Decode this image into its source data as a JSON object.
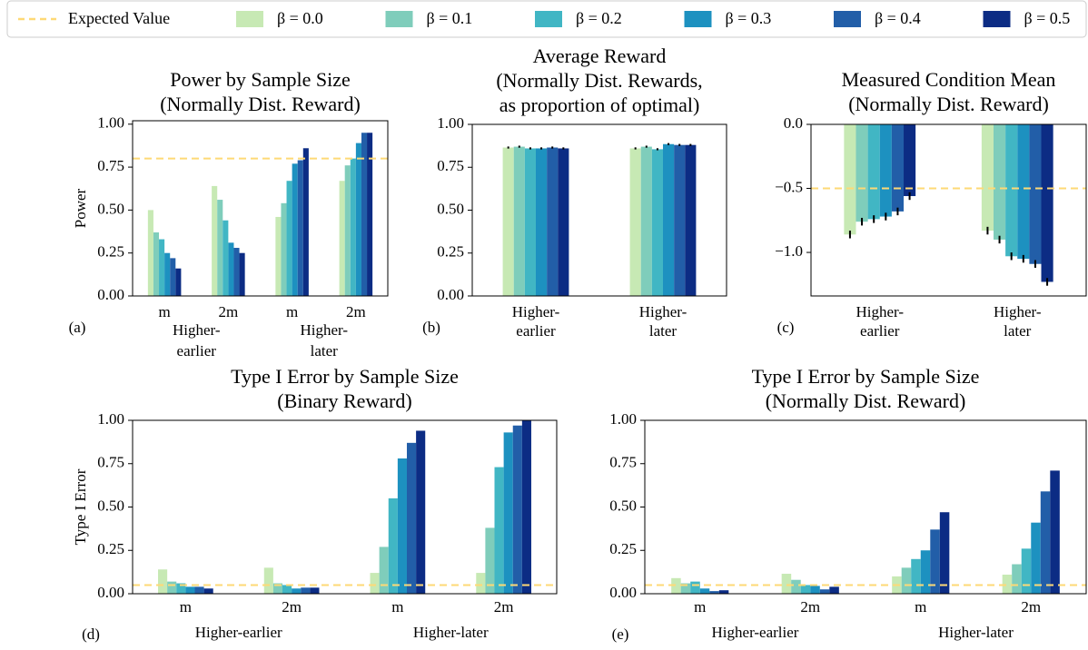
{
  "legend": {
    "items": [
      {
        "label": "Expected Value",
        "color": "#fed976"
      },
      {
        "label": "β = 0.0",
        "color": "#c7e9b4"
      },
      {
        "label": "β = 0.1",
        "color": "#7fcdbb"
      },
      {
        "label": "β = 0.2",
        "color": "#41b6c4"
      },
      {
        "label": "β = 0.3",
        "color": "#1d91c0"
      },
      {
        "label": "β = 0.4",
        "color": "#225ea8"
      },
      {
        "label": "β = 0.5",
        "color": "#0c2c84"
      }
    ]
  },
  "chart_data": [
    {
      "type": "bar",
      "panel_label": "(a)",
      "title": "Power by Sample Size\n(Normally Dist. Reward)",
      "y_label": "Power",
      "categories": [
        "m",
        "2m",
        "m",
        "2m"
      ],
      "groups": [
        "Higher-\nearlier",
        "Higher-\nlater"
      ],
      "ylim": [
        0,
        1.02
      ],
      "yticks": [
        {
          "value": 0,
          "label": "0.00"
        },
        {
          "value": 0.25,
          "label": "0.25"
        },
        {
          "value": 0.5,
          "label": "0.50"
        },
        {
          "value": 0.75,
          "label": "0.75"
        },
        {
          "value": 1,
          "label": "1.00"
        }
      ],
      "reference_line": 0.8,
      "series": [
        {
          "values": [
            0.5,
            0.64,
            0.46,
            0.67
          ]
        },
        {
          "values": [
            0.37,
            0.56,
            0.54,
            0.76
          ]
        },
        {
          "values": [
            0.33,
            0.44,
            0.67,
            0.8
          ]
        },
        {
          "values": [
            0.25,
            0.31,
            0.77,
            0.89
          ]
        },
        {
          "values": [
            0.22,
            0.28,
            0.79,
            0.95
          ]
        },
        {
          "values": [
            0.16,
            0.25,
            0.86,
            0.95
          ]
        }
      ]
    },
    {
      "type": "bar",
      "panel_label": "(b)",
      "title": "Average Reward\n(Normally Dist. Rewards,\nas proportion of optimal)",
      "categories": [
        "Higher-\nearlier",
        "Higher-\nlater"
      ],
      "ylim": [
        0,
        1
      ],
      "yticks": [
        {
          "value": 0,
          "label": "0.00"
        },
        {
          "value": 0.25,
          "label": "0.25"
        },
        {
          "value": 0.5,
          "label": "0.50"
        },
        {
          "value": 0.75,
          "label": "0.75"
        },
        {
          "value": 1,
          "label": "1.00"
        }
      ],
      "series": [
        {
          "values": [
            0.865,
            0.86
          ],
          "errors": [
            0.006,
            0.006
          ]
        },
        {
          "values": [
            0.87,
            0.87
          ],
          "errors": [
            0.006,
            0.006
          ]
        },
        {
          "values": [
            0.86,
            0.855
          ],
          "errors": [
            0.006,
            0.006
          ]
        },
        {
          "values": [
            0.86,
            0.885
          ],
          "errors": [
            0.006,
            0.006
          ]
        },
        {
          "values": [
            0.865,
            0.88
          ],
          "errors": [
            0.006,
            0.006
          ]
        },
        {
          "values": [
            0.86,
            0.88
          ],
          "errors": [
            0.006,
            0.006
          ]
        }
      ]
    },
    {
      "type": "bar",
      "panel_label": "(c)",
      "title": "Measured Condition Mean\n(Normally Dist. Reward)",
      "categories": [
        "Higher-\nearlier",
        "Higher-\nlater"
      ],
      "ylim": [
        -1.34,
        0
      ],
      "yticks": [
        {
          "value": 0,
          "label": "0.0"
        },
        {
          "value": -0.5,
          "label": "−0.5"
        },
        {
          "value": -1,
          "label": "−1.0"
        }
      ],
      "reference_line": -0.5,
      "series": [
        {
          "values": [
            -0.86,
            -0.83
          ],
          "errors": [
            0.03,
            0.03
          ]
        },
        {
          "values": [
            -0.76,
            -0.9
          ],
          "errors": [
            0.03,
            0.03
          ]
        },
        {
          "values": [
            -0.74,
            -1.03
          ],
          "errors": [
            0.03,
            0.03
          ]
        },
        {
          "values": [
            -0.72,
            -1.05
          ],
          "errors": [
            0.03,
            0.03
          ]
        },
        {
          "values": [
            -0.68,
            -1.09
          ],
          "errors": [
            0.03,
            0.03
          ]
        },
        {
          "values": [
            -0.56,
            -1.23
          ],
          "errors": [
            0.03,
            0.03
          ]
        }
      ]
    },
    {
      "type": "bar",
      "panel_label": "(d)",
      "title": "Type I Error by Sample Size\n(Binary Reward)",
      "y_label": "Type I Error",
      "categories": [
        "m",
        "2m",
        "m",
        "2m"
      ],
      "groups": [
        "Higher-earlier",
        "Higher-later"
      ],
      "ylim": [
        0,
        1
      ],
      "yticks": [
        {
          "value": 0,
          "label": "0.00"
        },
        {
          "value": 0.25,
          "label": "0.25"
        },
        {
          "value": 0.5,
          "label": "0.50"
        },
        {
          "value": 0.75,
          "label": "0.75"
        },
        {
          "value": 1,
          "label": "1.00"
        }
      ],
      "reference_line": 0.05,
      "series": [
        {
          "values": [
            0.14,
            0.15,
            0.12,
            0.12
          ]
        },
        {
          "values": [
            0.07,
            0.06,
            0.27,
            0.38
          ]
        },
        {
          "values": [
            0.06,
            0.05,
            0.55,
            0.73
          ]
        },
        {
          "values": [
            0.04,
            0.03,
            0.78,
            0.93
          ]
        },
        {
          "values": [
            0.04,
            0.035,
            0.87,
            0.97
          ]
        },
        {
          "values": [
            0.03,
            0.035,
            0.94,
            1.0
          ]
        }
      ]
    },
    {
      "type": "bar",
      "panel_label": "(e)",
      "title": "Type I Error by Sample Size\n(Normally Dist. Reward)",
      "categories": [
        "m",
        "2m",
        "m",
        "2m"
      ],
      "groups": [
        "Higher-earlier",
        "Higher-later"
      ],
      "ylim": [
        0,
        1
      ],
      "yticks": [
        {
          "value": 0,
          "label": "0.00"
        },
        {
          "value": 0.25,
          "label": "0.25"
        },
        {
          "value": 0.5,
          "label": "0.50"
        },
        {
          "value": 0.75,
          "label": "0.75"
        },
        {
          "value": 1,
          "label": "1.00"
        }
      ],
      "reference_line": 0.05,
      "series": [
        {
          "values": [
            0.09,
            0.115,
            0.1,
            0.11
          ]
        },
        {
          "values": [
            0.06,
            0.08,
            0.15,
            0.17
          ]
        },
        {
          "values": [
            0.07,
            0.05,
            0.2,
            0.26
          ]
        },
        {
          "values": [
            0.03,
            0.045,
            0.25,
            0.41
          ]
        },
        {
          "values": [
            0.015,
            0.025,
            0.37,
            0.59
          ]
        },
        {
          "values": [
            0.02,
            0.04,
            0.47,
            0.71
          ]
        }
      ]
    }
  ]
}
